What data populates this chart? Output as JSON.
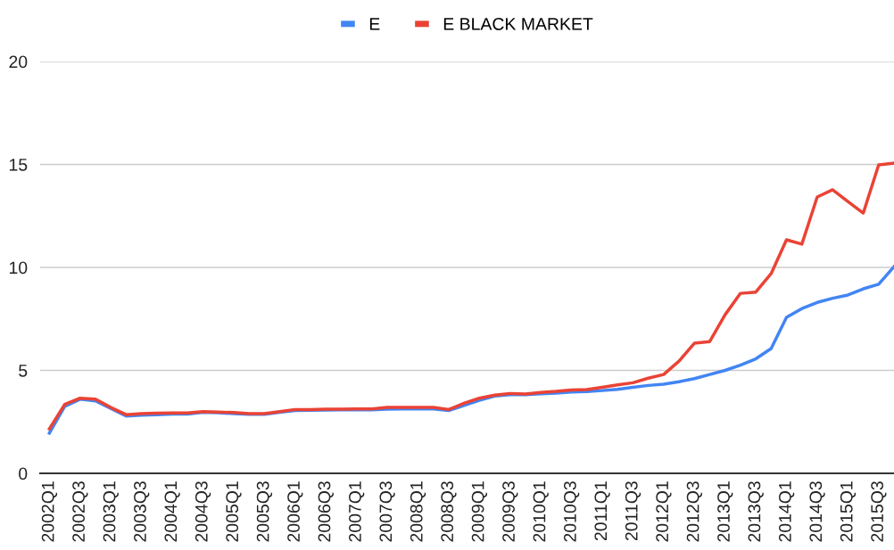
{
  "chart_data": {
    "type": "line",
    "categories": [
      "2002Q1",
      null,
      "2002Q3",
      null,
      "2003Q1",
      null,
      "2003Q3",
      null,
      "2004Q1",
      null,
      "2004Q3",
      null,
      "2005Q1",
      null,
      "2005Q3",
      null,
      "2006Q1",
      null,
      "2006Q3",
      null,
      "2007Q1",
      null,
      "2007Q3",
      null,
      "2008Q1",
      null,
      "2008Q3",
      null,
      "2009Q1",
      null,
      "2009Q3",
      null,
      "2010Q1",
      null,
      "2010Q3",
      null,
      "2011Q1",
      null,
      "2011Q3",
      null,
      "2012Q1",
      null,
      "2012Q3",
      null,
      "2013Q1",
      null,
      "2013Q3",
      null,
      "2014Q1",
      null,
      "2014Q3",
      null,
      "2015Q1",
      null,
      "2015Q3",
      null
    ],
    "series": [
      {
        "name": "E",
        "color": "#4285f4",
        "values": [
          1.95,
          3.25,
          3.6,
          3.52,
          3.15,
          2.78,
          2.82,
          2.85,
          2.88,
          2.88,
          2.96,
          2.94,
          2.9,
          2.87,
          2.87,
          2.96,
          3.05,
          3.06,
          3.07,
          3.08,
          3.08,
          3.08,
          3.12,
          3.13,
          3.13,
          3.13,
          3.05,
          3.3,
          3.55,
          3.75,
          3.82,
          3.82,
          3.86,
          3.9,
          3.95,
          3.97,
          4.02,
          4.08,
          4.18,
          4.27,
          4.33,
          4.45,
          4.6,
          4.8,
          5.0,
          5.25,
          5.56,
          6.06,
          7.58,
          8.0,
          8.3,
          8.5,
          8.66,
          8.96,
          9.18,
          10.04
        ]
      },
      {
        "name": "E BLACK MARKET",
        "color": "#ea4335",
        "values": [
          2.16,
          3.35,
          3.65,
          3.6,
          3.2,
          2.85,
          2.9,
          2.92,
          2.93,
          2.93,
          3.0,
          2.98,
          2.95,
          2.9,
          2.9,
          3.0,
          3.1,
          3.1,
          3.12,
          3.12,
          3.13,
          3.13,
          3.2,
          3.2,
          3.2,
          3.2,
          3.1,
          3.4,
          3.65,
          3.8,
          3.88,
          3.85,
          3.93,
          3.98,
          4.05,
          4.07,
          4.18,
          4.3,
          4.4,
          4.62,
          4.8,
          5.45,
          6.32,
          6.4,
          7.7,
          8.74,
          8.8,
          9.7,
          11.34,
          11.13,
          13.42,
          13.77,
          13.2,
          12.64,
          14.98,
          15.06
        ]
      }
    ],
    "ylim": [
      0,
      20
    ],
    "yticks": [
      0,
      5,
      10,
      15,
      20
    ],
    "grid": "y",
    "legend": "top",
    "marker": "none",
    "line_style": "solid"
  }
}
